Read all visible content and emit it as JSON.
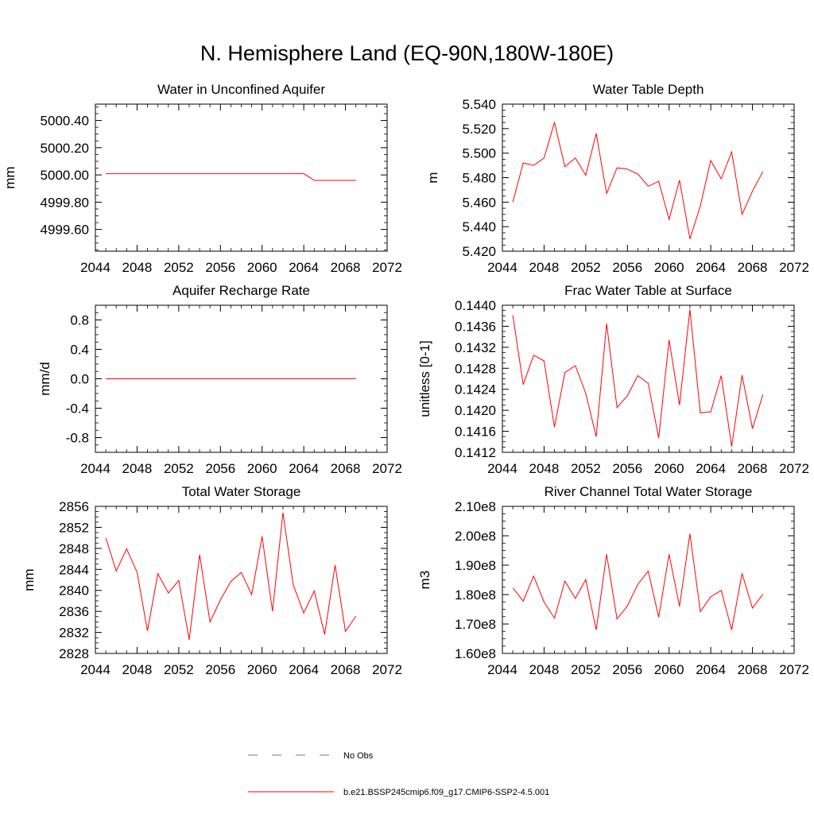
{
  "figure": {
    "title": "N. Hemisphere Land (EQ-90N,180W-180E)"
  },
  "legend": {
    "entries": [
      {
        "label": "No Obs",
        "color": "#6b6bd6",
        "style": "dashed"
      },
      {
        "label": "b.e21.BSSP245cmip6.f09_g17.CMIP6-SSP2-4.5.001",
        "color": "#ff0000",
        "style": "solid"
      }
    ]
  },
  "chart_data": [
    {
      "type": "line",
      "title": "Water in Unconfined Aquifer",
      "ylabel": "mm",
      "xlabel": "",
      "xlim": [
        2044,
        2072
      ],
      "ylim": [
        4999.44,
        5000.52
      ],
      "xticks": [
        2044,
        2048,
        2052,
        2056,
        2060,
        2064,
        2068,
        2072
      ],
      "xtick_labels": [
        "2044",
        "2048",
        "2052",
        "2056",
        "2060",
        "2064",
        "2068",
        "2072"
      ],
      "yticks": [
        4999.6,
        4999.8,
        5000.0,
        5000.2,
        5000.4
      ],
      "ytick_labels": [
        "4999.60",
        "4999.80",
        "5000.00",
        "5000.20",
        "5000.40"
      ],
      "series": [
        {
          "name": "b.e21.BSSP245cmip6.f09_g17.CMIP6-SSP2-4.5.001",
          "color": "#ff0000",
          "x": [
            2045,
            2046,
            2047,
            2048,
            2049,
            2050,
            2051,
            2052,
            2053,
            2054,
            2055,
            2056,
            2057,
            2058,
            2059,
            2060,
            2061,
            2062,
            2063,
            2064,
            2065,
            2066,
            2067,
            2068,
            2069
          ],
          "y": [
            5000.01,
            5000.01,
            5000.01,
            5000.01,
            5000.01,
            5000.01,
            5000.01,
            5000.01,
            5000.01,
            5000.01,
            5000.01,
            5000.01,
            5000.01,
            5000.01,
            5000.01,
            5000.01,
            5000.01,
            5000.01,
            5000.01,
            5000.01,
            4999.96,
            4999.96,
            4999.96,
            4999.96,
            4999.96
          ]
        }
      ]
    },
    {
      "type": "line",
      "title": "Water Table Depth",
      "ylabel": "m",
      "xlabel": "",
      "xlim": [
        2044,
        2072
      ],
      "ylim": [
        5.42,
        5.54
      ],
      "xticks": [
        2044,
        2048,
        2052,
        2056,
        2060,
        2064,
        2068,
        2072
      ],
      "xtick_labels": [
        "2044",
        "2048",
        "2052",
        "2056",
        "2060",
        "2064",
        "2068",
        "2072"
      ],
      "yticks": [
        5.42,
        5.44,
        5.46,
        5.48,
        5.5,
        5.52,
        5.54
      ],
      "ytick_labels": [
        "5.420",
        "5.440",
        "5.460",
        "5.480",
        "5.500",
        "5.520",
        "5.540"
      ],
      "series": [
        {
          "name": "b.e21.BSSP245cmip6.f09_g17.CMIP6-SSP2-4.5.001",
          "color": "#ff0000",
          "x": [
            2045,
            2046,
            2047,
            2048,
            2049,
            2050,
            2051,
            2052,
            2053,
            2054,
            2055,
            2056,
            2057,
            2058,
            2059,
            2060,
            2061,
            2062,
            2063,
            2064,
            2065,
            2066,
            2067,
            2068,
            2069
          ],
          "y": [
            5.46,
            5.492,
            5.49,
            5.496,
            5.525,
            5.489,
            5.496,
            5.482,
            5.516,
            5.467,
            5.488,
            5.487,
            5.483,
            5.473,
            5.477,
            5.446,
            5.478,
            5.43,
            5.457,
            5.494,
            5.479,
            5.501,
            5.45,
            5.469,
            5.485
          ]
        }
      ]
    },
    {
      "type": "line",
      "title": "Aquifer Recharge Rate",
      "ylabel": "mm/d",
      "xlabel": "",
      "xlim": [
        2044,
        2072
      ],
      "ylim": [
        -1.0,
        1.0
      ],
      "xticks": [
        2044,
        2048,
        2052,
        2056,
        2060,
        2064,
        2068,
        2072
      ],
      "xtick_labels": [
        "2044",
        "2048",
        "2052",
        "2056",
        "2060",
        "2064",
        "2068",
        "2072"
      ],
      "yticks": [
        -0.8,
        -0.4,
        0.0,
        0.4,
        0.8
      ],
      "ytick_labels": [
        "-0.8",
        "-0.4",
        "0.0",
        "0.4",
        "0.8"
      ],
      "series": [
        {
          "name": "b.e21.BSSP245cmip6.f09_g17.CMIP6-SSP2-4.5.001",
          "color": "#ff0000",
          "x": [
            2045,
            2046,
            2047,
            2048,
            2049,
            2050,
            2051,
            2052,
            2053,
            2054,
            2055,
            2056,
            2057,
            2058,
            2059,
            2060,
            2061,
            2062,
            2063,
            2064,
            2065,
            2066,
            2067,
            2068,
            2069
          ],
          "y": [
            0,
            0,
            0,
            0,
            0,
            0,
            0,
            0,
            0,
            0,
            0,
            0,
            0,
            0,
            0,
            0,
            0,
            0,
            0,
            0,
            0,
            0,
            0,
            0,
            0
          ]
        }
      ]
    },
    {
      "type": "line",
      "title": "Frac Water Table at Surface",
      "ylabel": "unitless [0-1]",
      "xlabel": "",
      "xlim": [
        2044,
        2072
      ],
      "ylim": [
        0.1412,
        0.144
      ],
      "xticks": [
        2044,
        2048,
        2052,
        2056,
        2060,
        2064,
        2068,
        2072
      ],
      "xtick_labels": [
        "2044",
        "2048",
        "2052",
        "2056",
        "2060",
        "2064",
        "2068",
        "2072"
      ],
      "yticks": [
        0.1412,
        0.1416,
        0.142,
        0.1424,
        0.1428,
        0.1432,
        0.1436,
        0.144
      ],
      "ytick_labels": [
        "0.1412",
        "0.1416",
        "0.1420",
        "0.1424",
        "0.1428",
        "0.1432",
        "0.1436",
        "0.1440"
      ],
      "series": [
        {
          "name": "b.e21.BSSP245cmip6.f09_g17.CMIP6-SSP2-4.5.001",
          "color": "#ff0000",
          "x": [
            2045,
            2046,
            2047,
            2048,
            2049,
            2050,
            2051,
            2052,
            2053,
            2054,
            2055,
            2056,
            2057,
            2058,
            2059,
            2060,
            2061,
            2062,
            2063,
            2064,
            2065,
            2066,
            2067,
            2068,
            2069
          ],
          "y": [
            0.14381,
            0.14249,
            0.14305,
            0.14294,
            0.14168,
            0.14272,
            0.14285,
            0.14232,
            0.1415,
            0.14365,
            0.14205,
            0.14228,
            0.14266,
            0.14251,
            0.14147,
            0.14334,
            0.1421,
            0.14392,
            0.14195,
            0.14197,
            0.14266,
            0.14131,
            0.14267,
            0.14165,
            0.1423
          ]
        }
      ]
    },
    {
      "type": "line",
      "title": "Total Water Storage",
      "ylabel": "mm",
      "xlabel": "",
      "xlim": [
        2044,
        2072
      ],
      "ylim": [
        2828,
        2856
      ],
      "xticks": [
        2044,
        2048,
        2052,
        2056,
        2060,
        2064,
        2068,
        2072
      ],
      "xtick_labels": [
        "2044",
        "2048",
        "2052",
        "2056",
        "2060",
        "2064",
        "2068",
        "2072"
      ],
      "yticks": [
        2828,
        2832,
        2836,
        2840,
        2844,
        2848,
        2852,
        2856
      ],
      "ytick_labels": [
        "2828",
        "2832",
        "2836",
        "2840",
        "2844",
        "2848",
        "2852",
        "2856"
      ],
      "series": [
        {
          "name": "b.e21.BSSP245cmip6.f09_g17.CMIP6-SSP2-4.5.001",
          "color": "#ff0000",
          "x": [
            2045,
            2046,
            2047,
            2048,
            2049,
            2050,
            2051,
            2052,
            2053,
            2054,
            2055,
            2056,
            2057,
            2058,
            2059,
            2060,
            2061,
            2062,
            2063,
            2064,
            2065,
            2066,
            2067,
            2068,
            2069
          ],
          "y": [
            2850.0,
            2843.7,
            2847.9,
            2843.5,
            2832.3,
            2843.2,
            2839.5,
            2841.9,
            2830.6,
            2846.8,
            2834.0,
            2838.2,
            2841.7,
            2843.4,
            2839.2,
            2850.3,
            2836.0,
            2854.8,
            2841.0,
            2835.7,
            2839.9,
            2831.6,
            2844.8,
            2832.2,
            2835.1
          ]
        }
      ]
    },
    {
      "type": "line",
      "title": "River Channel Total Water Storage",
      "ylabel": "m3",
      "xlabel": "",
      "xlim": [
        2044,
        2072
      ],
      "ylim": [
        160000000,
        210000000
      ],
      "xticks": [
        2044,
        2048,
        2052,
        2056,
        2060,
        2064,
        2068,
        2072
      ],
      "xtick_labels": [
        "2044",
        "2048",
        "2052",
        "2056",
        "2060",
        "2064",
        "2068",
        "2072"
      ],
      "yticks": [
        160000000,
        170000000,
        180000000,
        190000000,
        200000000,
        210000000
      ],
      "ytick_labels": [
        "1.60e8",
        "1.70e8",
        "1.80e8",
        "1.90e8",
        "2.00e8",
        "2.10e8"
      ],
      "series": [
        {
          "name": "b.e21.BSSP245cmip6.f09_g17.CMIP6-SSP2-4.5.001",
          "color": "#ff0000",
          "x": [
            2045,
            2046,
            2047,
            2048,
            2049,
            2050,
            2051,
            2052,
            2053,
            2054,
            2055,
            2056,
            2057,
            2058,
            2059,
            2060,
            2061,
            2062,
            2063,
            2064,
            2065,
            2066,
            2067,
            2068,
            2069
          ],
          "y": [
            182300000,
            177800000,
            186300000,
            177500000,
            172000000,
            184600000,
            178700000,
            185100000,
            168000000,
            193700000,
            171700000,
            176200000,
            183500000,
            188000000,
            172300000,
            193700000,
            176000000,
            200700000,
            174200000,
            179300000,
            181400000,
            168000000,
            187200000,
            175400000,
            180100000
          ]
        }
      ]
    }
  ]
}
